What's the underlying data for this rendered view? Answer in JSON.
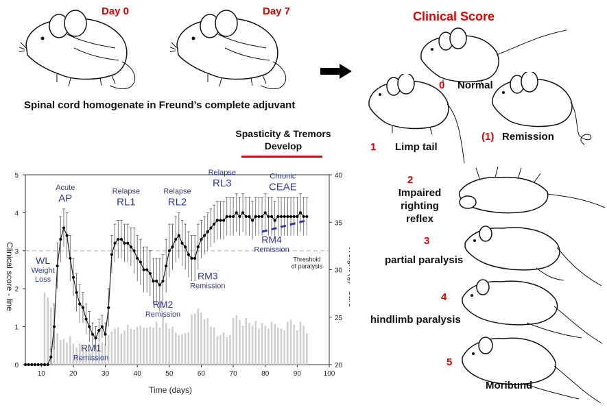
{
  "induction": {
    "day0": "Day 0",
    "day7": "Day 7",
    "caption": "Spinal cord homogenate in Freund’s complete adjuvant"
  },
  "spasticity": {
    "line1": "Spasticity & Tremors",
    "line2": "Develop"
  },
  "clinical": {
    "title": "Clinical Score",
    "scores": [
      {
        "num": "0",
        "label": "Normal"
      },
      {
        "num": "(1)",
        "label": "Remission"
      },
      {
        "num": "1",
        "label": "Limp tail"
      },
      {
        "num": "2",
        "label_line1": "Impaired",
        "label_line2": "righting reflex"
      },
      {
        "num": "3",
        "label": "partial paralysis"
      },
      {
        "num": "4",
        "label": "hindlimb paralysis"
      },
      {
        "num": "5",
        "label": "Moribund"
      }
    ]
  },
  "chart_data": {
    "type": "line",
    "xlabel": "Time (days)",
    "ylabel_left": "Clinical score - line",
    "ylabel_right": "Weight (g) - bars",
    "xlim": [
      5,
      100
    ],
    "ylim_left": [
      0,
      5
    ],
    "ylim_right": [
      20,
      40
    ],
    "x_ticks": [
      "10",
      "20",
      "30",
      "40",
      "50",
      "60",
      "70",
      "80",
      "90",
      "100"
    ],
    "y_left_ticks": [
      "0",
      "1",
      "2",
      "3",
      "4",
      "5"
    ],
    "y_right_ticks": [
      "20",
      "25",
      "30",
      "35",
      "40"
    ],
    "threshold": 3,
    "threshold_label": [
      "Threshold",
      "of paralysis"
    ],
    "line_series": {
      "name": "Clinical score",
      "x": [
        5,
        6,
        7,
        8,
        9,
        10,
        11,
        12,
        13,
        14,
        15,
        16,
        17,
        18,
        19,
        20,
        21,
        22,
        23,
        24,
        25,
        26,
        27,
        28,
        29,
        30,
        31,
        32,
        33,
        34,
        35,
        36,
        37,
        38,
        39,
        40,
        41,
        42,
        43,
        44,
        45,
        46,
        47,
        48,
        49,
        50,
        51,
        52,
        53,
        54,
        55,
        56,
        57,
        58,
        59,
        60,
        61,
        62,
        63,
        64,
        65,
        66,
        67,
        68,
        69,
        70,
        71,
        72,
        73,
        74,
        75,
        76,
        77,
        78,
        79,
        80,
        81,
        82,
        83,
        84,
        85,
        86,
        87,
        88,
        89,
        90,
        91,
        92,
        93
      ],
      "y": [
        0,
        0,
        0,
        0,
        0,
        0,
        0,
        0,
        0.2,
        1.0,
        2.6,
        3.3,
        3.6,
        3.4,
        2.8,
        2.3,
        1.9,
        1.6,
        1.5,
        1.2,
        1.0,
        0.8,
        0.7,
        0.9,
        1.0,
        0.8,
        1.5,
        2.9,
        3.2,
        3.3,
        3.3,
        3.2,
        3.2,
        3.1,
        3.0,
        2.8,
        2.7,
        2.5,
        2.5,
        2.4,
        2.2,
        2.2,
        2.1,
        2.2,
        2.6,
        3.0,
        3.1,
        3.3,
        3.4,
        3.2,
        3.1,
        2.9,
        2.8,
        2.8,
        3.1,
        3.3,
        3.4,
        3.5,
        3.6,
        3.7,
        3.8,
        3.8,
        3.8,
        3.9,
        3.9,
        3.9,
        4.0,
        3.9,
        4.0,
        3.9,
        3.9,
        3.8,
        3.9,
        3.9,
        3.9,
        4.0,
        3.9,
        3.9,
        3.8,
        3.9,
        3.9,
        3.9,
        3.9,
        3.9,
        3.9,
        3.9,
        4.0,
        3.9,
        3.9
      ],
      "error": [
        0,
        0,
        0,
        0,
        0,
        0,
        0,
        0,
        0.2,
        0.6,
        0.6,
        0.6,
        0.5,
        0.6,
        0.6,
        0.5,
        0.5,
        0.5,
        0.4,
        0.4,
        0.4,
        0.3,
        0.3,
        0.3,
        0.3,
        0.3,
        0.5,
        0.5,
        0.5,
        0.5,
        0.5,
        0.5,
        0.5,
        0.5,
        0.6,
        0.6,
        0.6,
        0.6,
        0.6,
        0.6,
        0.6,
        0.6,
        0.7,
        0.7,
        0.7,
        0.7,
        0.6,
        0.6,
        0.6,
        0.6,
        0.6,
        0.6,
        0.6,
        0.6,
        0.6,
        0.5,
        0.5,
        0.5,
        0.5,
        0.5,
        0.5,
        0.5,
        0.5,
        0.5,
        0.5,
        0.5,
        0.5,
        0.5,
        0.5,
        0.5,
        0.5,
        0.5,
        0.5,
        0.5,
        0.5,
        0.5,
        0.5,
        0.5,
        0.5,
        0.5,
        0.5,
        0.5,
        0.5,
        0.5,
        0.5,
        0.5,
        0.5,
        0.5,
        0.5
      ]
    },
    "bar_series": {
      "name": "Weight",
      "x": [
        11,
        12,
        13,
        14,
        15,
        16,
        17,
        18,
        19,
        20,
        21,
        22,
        23,
        24,
        25,
        26,
        27,
        28,
        29,
        30,
        31,
        32,
        33,
        34,
        35,
        36,
        37,
        38,
        39,
        40,
        41,
        42,
        43,
        44,
        45,
        46,
        47,
        48,
        49,
        50,
        51,
        52,
        53,
        54,
        55,
        56,
        57,
        58,
        59,
        60,
        61,
        62,
        63,
        64,
        65,
        66,
        67,
        68,
        69,
        70,
        71,
        72,
        73,
        74,
        75,
        76,
        77,
        78,
        79,
        80,
        81,
        82,
        83,
        84,
        85,
        86,
        87,
        88,
        89,
        90,
        91,
        92,
        93
      ],
      "values": [
        27.6,
        27.1,
        26.0,
        24.7,
        23.3,
        22.6,
        22.7,
        22.3,
        23.0,
        22.2,
        21.8,
        22.2,
        21.9,
        21.7,
        21.6,
        21.9,
        22.1,
        22.3,
        22.4,
        22.2,
        23.1,
        23.5,
        23.8,
        23.9,
        23.3,
        23.6,
        24.2,
        23.8,
        23.7,
        24.0,
        24.1,
        23.9,
        23.9,
        24.0,
        23.9,
        24.5,
        23.9,
        25.1,
        24.4,
        23.8,
        24.0,
        23.4,
        23.1,
        23.2,
        23.3,
        23.4,
        25.3,
        25.4,
        25.9,
        25.5,
        24.8,
        24.9,
        24.0,
        23.9,
        23.0,
        23.1,
        23.4,
        22.9,
        23.1,
        24.9,
        25.2,
        24.7,
        24.1,
        24.9,
        24.4,
        24.1,
        24.6,
        23.8,
        24.4,
        24.1,
        23.8,
        24.5,
        24.3,
        23.9,
        23.8,
        23.6,
        24.5,
        24.7,
        24.2,
        23.6,
        24.5,
        24.1,
        23.3
      ]
    },
    "annotations": [
      {
        "lines": [
          "WL",
          "Weight",
          "Loss"
        ]
      },
      {
        "lines": [
          "Acute",
          "AP"
        ]
      },
      {
        "lines": [
          "RM1",
          "Remission"
        ]
      },
      {
        "lines": [
          "Relapse",
          "RL1"
        ]
      },
      {
        "lines": [
          "RM2",
          "Remission"
        ]
      },
      {
        "lines": [
          "Relapse",
          "RL2"
        ]
      },
      {
        "lines": [
          "RM3",
          "Remission"
        ]
      },
      {
        "lines": [
          "Relapse",
          "RL3"
        ]
      },
      {
        "lines": [
          "Chronic",
          "CEAE"
        ]
      },
      {
        "lines": [
          "RM4",
          "Remission"
        ]
      }
    ]
  }
}
